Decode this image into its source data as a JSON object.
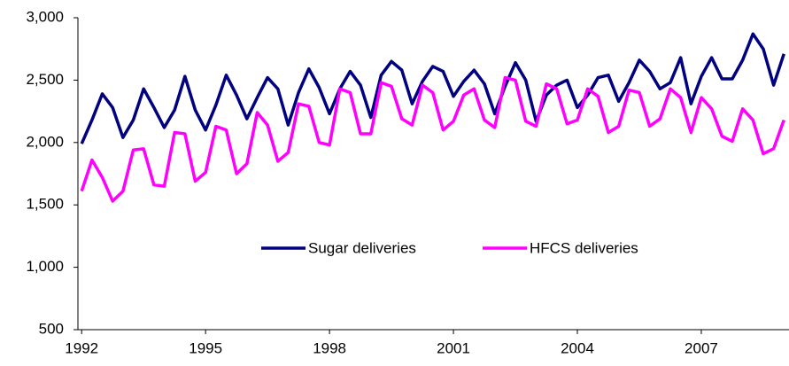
{
  "chart_data": {
    "type": "line",
    "x": [
      1992,
      1992.25,
      1992.5,
      1992.75,
      1993,
      1993.25,
      1993.5,
      1993.75,
      1994,
      1994.25,
      1994.5,
      1994.75,
      1995,
      1995.25,
      1995.5,
      1995.75,
      1996,
      1996.25,
      1996.5,
      1996.75,
      1997,
      1997.25,
      1997.5,
      1997.75,
      1998,
      1998.25,
      1998.5,
      1998.75,
      1999,
      1999.25,
      1999.5,
      1999.75,
      2000,
      2000.25,
      2000.5,
      2000.75,
      2001,
      2001.25,
      2001.5,
      2001.75,
      2002,
      2002.25,
      2002.5,
      2002.75,
      2003,
      2003.25,
      2003.5,
      2003.75,
      2004,
      2004.25,
      2004.5,
      2004.75,
      2005,
      2005.25,
      2005.5,
      2005.75,
      2006,
      2006.25,
      2006.5,
      2006.75,
      2007,
      2007.25,
      2007.5,
      2007.75,
      2008,
      2008.25,
      2008.5,
      2008.75,
      2009
    ],
    "series": [
      {
        "name": "Sugar deliveries",
        "color": "#000080",
        "values": [
          1990,
          2180,
          2390,
          2280,
          2040,
          2180,
          2430,
          2280,
          2120,
          2260,
          2530,
          2260,
          2100,
          2300,
          2540,
          2380,
          2190,
          2360,
          2520,
          2430,
          2140,
          2400,
          2590,
          2440,
          2230,
          2430,
          2570,
          2460,
          2200,
          2540,
          2650,
          2580,
          2310,
          2490,
          2610,
          2570,
          2370,
          2490,
          2580,
          2470,
          2230,
          2450,
          2640,
          2500,
          2170,
          2380,
          2460,
          2500,
          2280,
          2380,
          2520,
          2540,
          2330,
          2480,
          2660,
          2570,
          2430,
          2480,
          2680,
          2310,
          2530,
          2680,
          2510,
          2510,
          2660,
          2870,
          2750,
          2460,
          2710
        ]
      },
      {
        "name": "HFCS deliveries",
        "color": "#ff00ff",
        "values": [
          1610,
          1860,
          1720,
          1530,
          1610,
          1940,
          1950,
          1660,
          1650,
          2080,
          2070,
          1690,
          1760,
          2130,
          2100,
          1750,
          1830,
          2240,
          2140,
          1850,
          1920,
          2310,
          2290,
          2000,
          1980,
          2430,
          2400,
          2070,
          2070,
          2480,
          2450,
          2190,
          2140,
          2460,
          2400,
          2100,
          2170,
          2380,
          2430,
          2180,
          2120,
          2520,
          2500,
          2170,
          2130,
          2470,
          2430,
          2150,
          2180,
          2430,
          2370,
          2080,
          2130,
          2420,
          2400,
          2130,
          2190,
          2430,
          2360,
          2080,
          2360,
          2270,
          2050,
          2010,
          2270,
          2180,
          1910,
          1950,
          2180
        ]
      }
    ],
    "xlim": [
      1991.91,
      2009.08
    ],
    "xticks": [
      1992,
      1995,
      1998,
      2001,
      2004,
      2007
    ],
    "ylim": [
      500,
      3000
    ],
    "yticks": [
      {
        "value": 500,
        "label": "500"
      },
      {
        "value": 1000,
        "label": "1,000"
      },
      {
        "value": 1500,
        "label": "1,500"
      },
      {
        "value": 2000,
        "label": "2,000"
      },
      {
        "value": 2500,
        "label": "2,500"
      },
      {
        "value": 3000,
        "label": "3,000"
      }
    ],
    "grid": false
  }
}
